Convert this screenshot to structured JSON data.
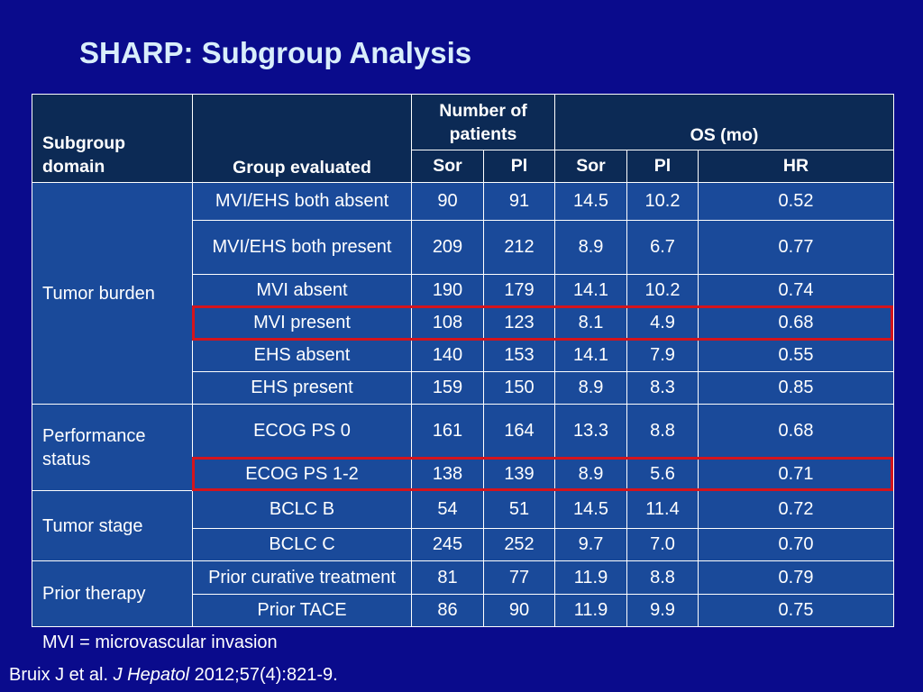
{
  "title": "SHARP: Subgroup Analysis",
  "table": {
    "headers": {
      "subgroup_domain": "Subgroup domain",
      "group_evaluated": "Group evaluated",
      "number_of_patients": "Number of patients",
      "os": "OS (mo)",
      "sor": "Sor",
      "pl": "Pl",
      "hr": "HR"
    },
    "domains": {
      "tumor_burden": "Tumor burden",
      "performance_status": "Performance status",
      "tumor_stage": "Tumor stage",
      "prior_therapy": "Prior therapy"
    },
    "rows": [
      {
        "group": "MVI/EHS both absent",
        "n_sor": "90",
        "n_pl": "91",
        "os_sor": "14.5",
        "os_pl": "10.2",
        "hr": "0.52"
      },
      {
        "group": "MVI/EHS both present",
        "n_sor": "209",
        "n_pl": "212",
        "os_sor": "8.9",
        "os_pl": "6.7",
        "hr": "0.77"
      },
      {
        "group": "MVI absent",
        "n_sor": "190",
        "n_pl": "179",
        "os_sor": "14.1",
        "os_pl": "10.2",
        "hr": "0.74"
      },
      {
        "group": "MVI present",
        "n_sor": "108",
        "n_pl": "123",
        "os_sor": "8.1",
        "os_pl": "4.9",
        "hr": "0.68"
      },
      {
        "group": "EHS absent",
        "n_sor": "140",
        "n_pl": "153",
        "os_sor": "14.1",
        "os_pl": "7.9",
        "hr": "0.55"
      },
      {
        "group": "EHS present",
        "n_sor": "159",
        "n_pl": "150",
        "os_sor": "8.9",
        "os_pl": "8.3",
        "hr": "0.85"
      },
      {
        "group": "ECOG PS 0",
        "n_sor": "161",
        "n_pl": "164",
        "os_sor": "13.3",
        "os_pl": "8.8",
        "hr": "0.68"
      },
      {
        "group": "ECOG PS 1-2",
        "n_sor": "138",
        "n_pl": "139",
        "os_sor": "8.9",
        "os_pl": "5.6",
        "hr": "0.71"
      },
      {
        "group": "BCLC B",
        "n_sor": "54",
        "n_pl": "51",
        "os_sor": "14.5",
        "os_pl": "11.4",
        "hr": "0.72"
      },
      {
        "group": "BCLC C",
        "n_sor": "245",
        "n_pl": "252",
        "os_sor": "9.7",
        "os_pl": "7.0",
        "hr": "0.70"
      },
      {
        "group": "Prior curative treatment",
        "n_sor": "81",
        "n_pl": "77",
        "os_sor": "11.9",
        "os_pl": "8.8",
        "hr": "0.79"
      },
      {
        "group": "Prior TACE",
        "n_sor": "86",
        "n_pl": "90",
        "os_sor": "11.9",
        "os_pl": "9.9",
        "hr": "0.75"
      }
    ]
  },
  "highlight_color": "#d4141c",
  "footnote": "MVI = microvascular invasion",
  "citation": {
    "authors": "Bruix J et al.",
    "journal": "J Hepatol",
    "ref": "2012;57(4):821-9."
  }
}
